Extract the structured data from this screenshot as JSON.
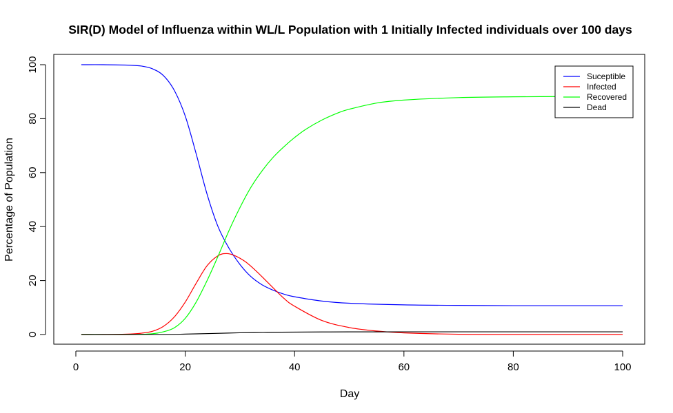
{
  "chart_data": {
    "type": "line",
    "title": "SIR(D) Model of Influenza within WL/L Population with 1 Initially Infected individuals over 100 days",
    "xlabel": "Day",
    "ylabel": "Percentage of Population",
    "xlim": [
      1,
      100
    ],
    "ylim": [
      0,
      100
    ],
    "xticks": [
      0,
      20,
      40,
      60,
      80,
      100
    ],
    "yticks": [
      0,
      20,
      40,
      60,
      80,
      100
    ],
    "grid": false,
    "legend_position": "top-right",
    "series": [
      {
        "name": "Suceptible",
        "color": "#0000ff",
        "x": [
          1,
          5,
          10,
          12,
          14,
          16,
          18,
          20,
          22,
          24,
          26,
          28,
          30,
          32,
          34,
          36,
          38,
          40,
          45,
          50,
          60,
          70,
          80,
          90,
          100
        ],
        "values": [
          100,
          100,
          99.8,
          99.5,
          98.5,
          96,
          90.5,
          81,
          67,
          52,
          40,
          32,
          26,
          21.5,
          18.5,
          16.5,
          15,
          14,
          12.4,
          11.6,
          11,
          10.8,
          10.7,
          10.7,
          10.7
        ]
      },
      {
        "name": "Infected",
        "color": "#ff0000",
        "x": [
          1,
          5,
          10,
          12,
          14,
          16,
          18,
          20,
          22,
          24,
          26,
          27.5,
          29,
          31,
          33,
          35,
          38,
          40,
          45,
          50,
          55,
          60,
          70,
          80,
          90,
          100
        ],
        "values": [
          0,
          0,
          0.2,
          0.5,
          1.2,
          3,
          6.5,
          12,
          19,
          25.5,
          29.2,
          30,
          29.3,
          27,
          23.5,
          19.5,
          13.5,
          10.5,
          5.2,
          2.6,
          1.3,
          0.6,
          0.1,
          0,
          0,
          0
        ]
      },
      {
        "name": "Recovered",
        "color": "#00ff00",
        "x": [
          1,
          10,
          14,
          16,
          18,
          20,
          22,
          24,
          26,
          28,
          30,
          32,
          34,
          36,
          38,
          40,
          42,
          45,
          48,
          50,
          55,
          60,
          70,
          80,
          90,
          100
        ],
        "values": [
          0,
          0,
          0.3,
          1,
          2.5,
          6,
          12,
          20,
          29,
          38.5,
          47,
          54.5,
          60.5,
          65.5,
          69.5,
          73,
          76,
          79.5,
          82.2,
          83.5,
          85.8,
          86.9,
          87.8,
          88.1,
          88.2,
          88.3
        ]
      },
      {
        "name": "Dead",
        "color": "#000000",
        "x": [
          1,
          15,
          20,
          25,
          30,
          35,
          40,
          45,
          50,
          60,
          70,
          80,
          90,
          100
        ],
        "values": [
          0,
          0.02,
          0.15,
          0.4,
          0.65,
          0.8,
          0.9,
          0.95,
          0.98,
          1,
          1,
          1,
          1,
          1
        ]
      }
    ]
  }
}
